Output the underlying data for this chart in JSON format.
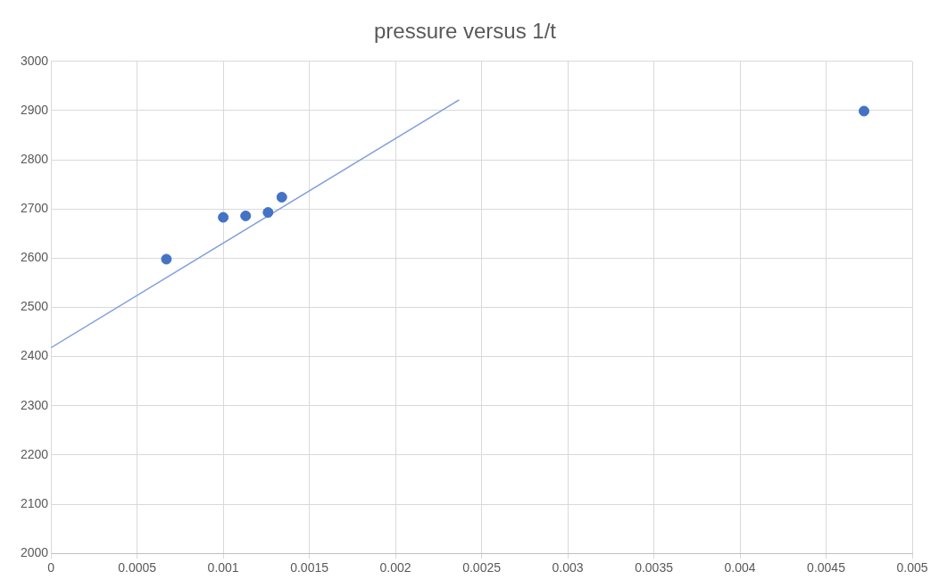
{
  "chart_data": {
    "type": "scatter",
    "title": "pressure versus 1/t",
    "series": [
      {
        "type": "scatter",
        "marker": "circle",
        "color": "#4472c4",
        "x": [
          0.00067,
          0.001,
          0.00113,
          0.00126,
          0.00134,
          0.00472
        ],
        "values": [
          2598,
          2683,
          2686,
          2693,
          2724,
          2899
        ]
      },
      {
        "type": "line",
        "marker": "none",
        "color": "#7f9fdc",
        "x": [
          0,
          0.00237
        ],
        "values": [
          2418,
          2922
        ]
      }
    ],
    "xlim": [
      0,
      0.005
    ],
    "xticks": [
      0,
      0.0005,
      0.001,
      0.0015,
      0.002,
      0.0025,
      0.003,
      0.0035,
      0.004,
      0.0045,
      0.005
    ],
    "ylim": [
      2000,
      3000
    ],
    "yticks": [
      2000,
      2100,
      2200,
      2300,
      2400,
      2500,
      2600,
      2700,
      2800,
      2900,
      3000
    ],
    "grid": true,
    "legend": false
  }
}
